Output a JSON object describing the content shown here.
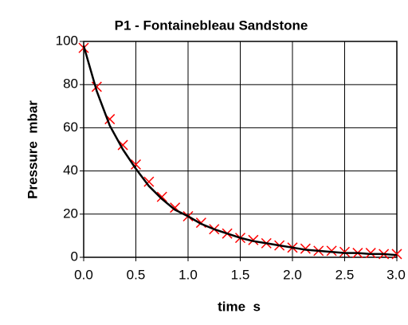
{
  "chart_data": {
    "type": "line",
    "title": "P1 - Fontainebleau Sandstone",
    "xlabel": "time  s",
    "ylabel": "Pressure  mbar",
    "x": [
      0,
      0.125,
      0.25,
      0.375,
      0.5,
      0.625,
      0.75,
      0.875,
      1.0,
      1.125,
      1.25,
      1.375,
      1.5,
      1.625,
      1.75,
      1.875,
      2.0,
      2.125,
      2.25,
      2.375,
      2.5,
      2.625,
      2.75,
      2.875,
      3.0
    ],
    "series": [
      {
        "color": "#ff0000",
        "marker": "x",
        "values": [
          97,
          79,
          64,
          52,
          43,
          35,
          28,
          23,
          19,
          16,
          13,
          11,
          9,
          8,
          6.5,
          5.5,
          4.5,
          4,
          3,
          3,
          2.5,
          2,
          2,
          1.5,
          1.5
        ]
      },
      {
        "color": "#000000",
        "marker": "none",
        "values": [
          98,
          77,
          61,
          50,
          41,
          33,
          27,
          22,
          19,
          15.5,
          13,
          11,
          9,
          7.5,
          6.5,
          5.5,
          4.5,
          3.5,
          3,
          2.5,
          2,
          2,
          1.5,
          1.5,
          1
        ]
      }
    ],
    "xlim": [
      0,
      3
    ],
    "ylim": [
      0,
      100
    ],
    "xticks": [
      {
        "value": 0,
        "label": "0.0"
      },
      0.5,
      {
        "value": 1,
        "label": "1.0"
      },
      1.5,
      {
        "value": 2,
        "label": "2.0"
      },
      2.5,
      {
        "value": 3,
        "label": "3.0"
      }
    ],
    "yticks": [
      0,
      20,
      40,
      60,
      80,
      100
    ],
    "grid": true
  }
}
